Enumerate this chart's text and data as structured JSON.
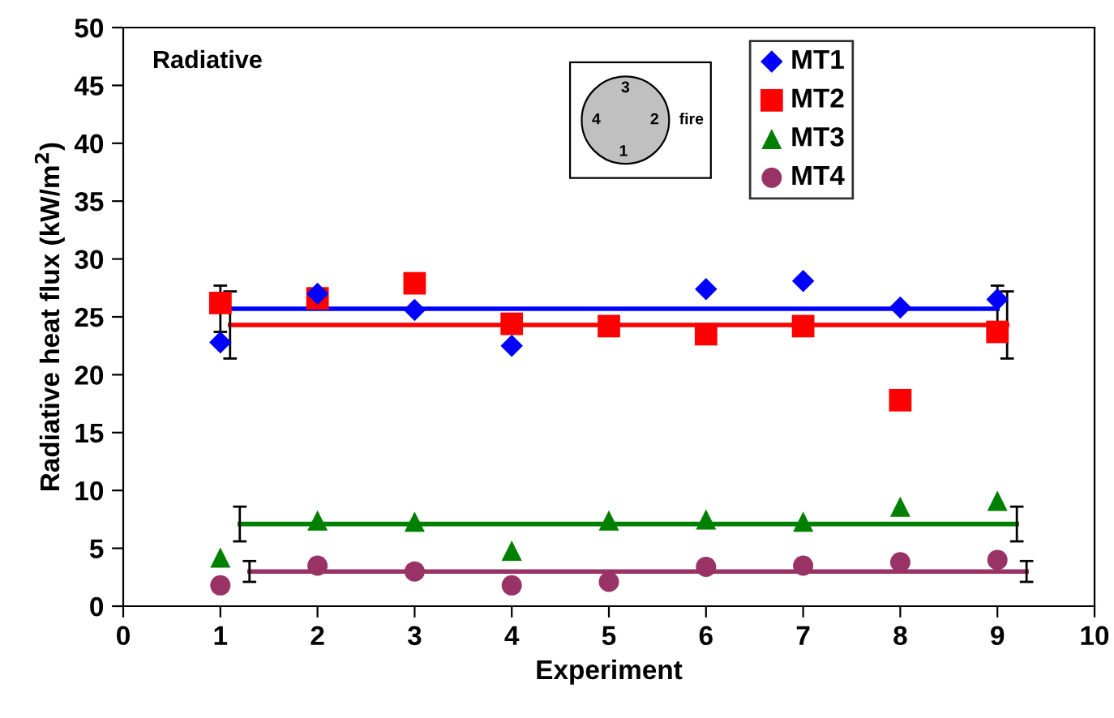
{
  "chart_data": {
    "type": "scatter",
    "title": "Radiative",
    "xlabel": "Experiment",
    "ylabel": "Radiative heat flux (kW/m$^{2}$)",
    "x": [
      1,
      2,
      3,
      4,
      5,
      6,
      7,
      8,
      9
    ],
    "series": [
      {
        "name": "MT1",
        "color": "#0000ff",
        "marker": "diamond",
        "values": [
          22.8,
          27.0,
          25.6,
          22.5,
          null,
          27.4,
          28.1,
          25.8,
          26.5
        ]
      },
      {
        "name": "MT2",
        "color": "#ff0000",
        "marker": "square",
        "values": [
          26.2,
          26.6,
          27.9,
          24.4,
          24.2,
          23.5,
          24.2,
          17.8,
          23.7
        ]
      },
      {
        "name": "MT3",
        "color": "#008000",
        "marker": "triangle",
        "values": [
          4.2,
          7.4,
          7.3,
          4.8,
          7.4,
          7.5,
          7.3,
          8.6,
          9.1
        ]
      },
      {
        "name": "MT4",
        "color": "#993366",
        "marker": "circle",
        "values": [
          1.8,
          3.5,
          3.0,
          1.8,
          2.1,
          3.4,
          3.5,
          3.8,
          4.0
        ]
      },
      {
        "type": "line",
        "color": "#0000ff",
        "x": [
          1,
          9
        ],
        "values": [
          25.7,
          25.7
        ],
        "errors": [
          2.0,
          2.0
        ]
      },
      {
        "type": "line",
        "color": "#ff0000",
        "x": [
          1.1,
          9.1
        ],
        "values": [
          24.3,
          24.3
        ],
        "errors": [
          2.9,
          2.9
        ]
      },
      {
        "type": "line",
        "color": "#008000",
        "x": [
          1.2,
          9.2
        ],
        "values": [
          7.1,
          7.1
        ],
        "errors": [
          1.5,
          1.5
        ]
      },
      {
        "type": "line",
        "color": "#993366",
        "x": [
          1.3,
          9.3
        ],
        "values": [
          3.0,
          3.0
        ],
        "errors": [
          0.9,
          0.9
        ]
      }
    ],
    "xlim": [
      0,
      10
    ],
    "xticks": [
      0,
      1,
      2,
      3,
      4,
      5,
      6,
      7,
      8,
      9,
      10
    ],
    "ylim": [
      0,
      50
    ],
    "yticks": [
      0,
      5,
      10,
      15,
      20,
      25,
      30,
      35,
      40,
      45,
      50
    ],
    "grid": false,
    "legend": "top right",
    "annotations": [
      "1",
      "2",
      "3",
      "4",
      "fire"
    ]
  }
}
